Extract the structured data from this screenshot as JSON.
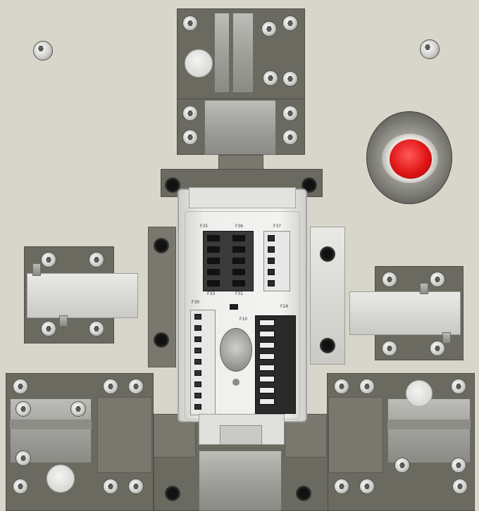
{
  "scene": {
    "description_tag": "fixture-box",
    "colors": {
      "base_plate": "#d8d5cb",
      "dark_block": "#6b6a61",
      "fuse_box": "#e9e9e7",
      "fuse_dark": "#1e1e1e",
      "red_button": "#e01616"
    }
  },
  "fusebox": {
    "top_left_label": "F35",
    "top_mid_label": "F36",
    "top_right_label": "F37",
    "mid_left_label": "F33",
    "mid_center_label": "F31",
    "side_label_left": "F30",
    "side_label_right": "F24",
    "center_label": "F10"
  },
  "emergency_button": {
    "icon": "red-push-button-icon"
  },
  "fixings": {
    "icon": "hex-socket-screw-icon"
  }
}
